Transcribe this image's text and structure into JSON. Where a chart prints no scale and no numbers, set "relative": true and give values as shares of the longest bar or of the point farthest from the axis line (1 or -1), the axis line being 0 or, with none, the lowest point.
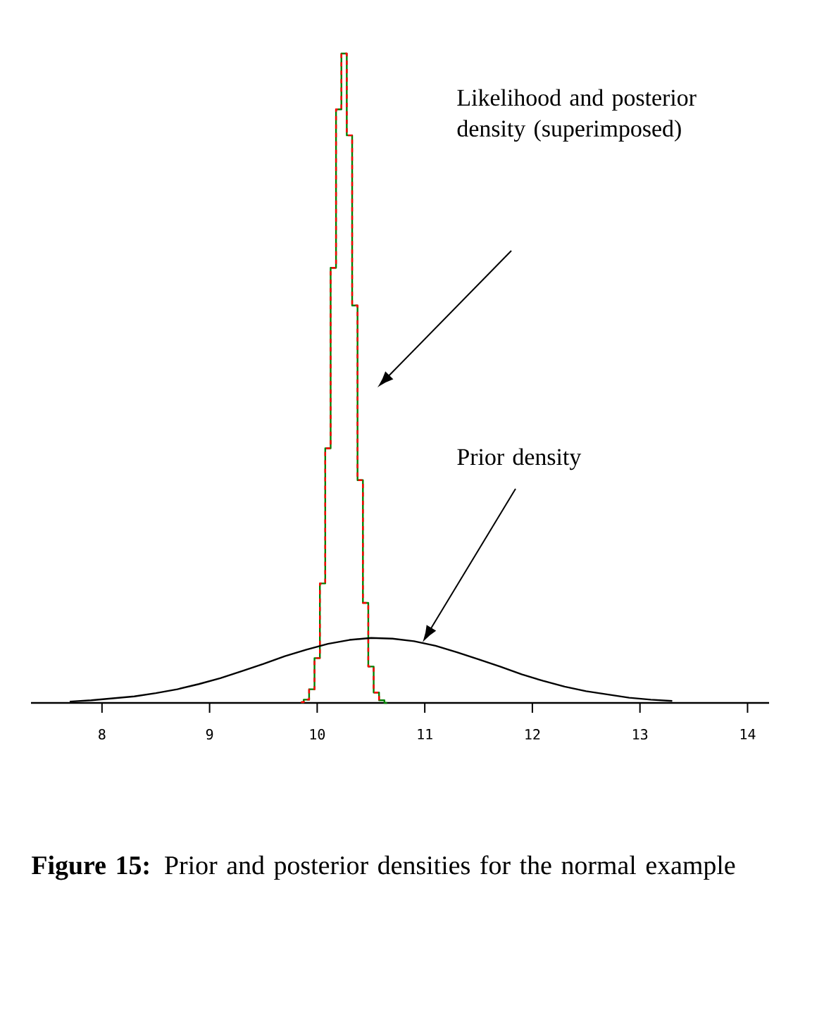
{
  "chart_data": {
    "type": "line",
    "relative": true,
    "xlim": [
      7.34,
      14.2
    ],
    "xticks": [
      8,
      9,
      10,
      11,
      12,
      13,
      14
    ],
    "series": [
      {
        "type": "step",
        "color": "#008000",
        "x": [
          9.85,
          9.9,
          9.95,
          10.0,
          10.05,
          10.1,
          10.15,
          10.2,
          10.25,
          10.3,
          10.35,
          10.4,
          10.45,
          10.5,
          10.55,
          10.6,
          10.65
        ],
        "values": [
          0.001,
          0.005,
          0.021,
          0.069,
          0.184,
          0.392,
          0.67,
          0.914,
          1.0,
          0.874,
          0.612,
          0.343,
          0.154,
          0.056,
          0.016,
          0.004,
          0.0
        ]
      },
      {
        "type": "step",
        "color": "#ff0000",
        "line_style": "dashed",
        "x": [
          9.85,
          9.9,
          9.95,
          10.0,
          10.05,
          10.1,
          10.15,
          10.2,
          10.25,
          10.3,
          10.35,
          10.4,
          10.45,
          10.5,
          10.55,
          10.6
        ],
        "values": [
          0.001,
          0.005,
          0.021,
          0.069,
          0.184,
          0.392,
          0.67,
          0.914,
          1.0,
          0.874,
          0.612,
          0.343,
          0.154,
          0.056,
          0.016,
          0.004
        ]
      },
      {
        "color": "#000000",
        "x": [
          7.7,
          7.9,
          8.1,
          8.3,
          8.5,
          8.7,
          8.9,
          9.1,
          9.3,
          9.5,
          9.7,
          9.9,
          10.1,
          10.3,
          10.5,
          10.7,
          10.9,
          11.1,
          11.3,
          11.5,
          11.7,
          11.9,
          12.1,
          12.3,
          12.5,
          12.7,
          12.9,
          13.1,
          13.3
        ],
        "values": [
          0.002,
          0.004,
          0.007,
          0.01,
          0.015,
          0.021,
          0.029,
          0.038,
          0.049,
          0.06,
          0.072,
          0.082,
          0.091,
          0.097,
          0.1,
          0.099,
          0.095,
          0.088,
          0.078,
          0.067,
          0.056,
          0.044,
          0.034,
          0.025,
          0.018,
          0.013,
          0.008,
          0.005,
          0.003
        ]
      }
    ],
    "annotations": [
      "Likelihood and posterior density (superimposed)",
      "Prior density",
      "**Figure 15:** Prior and posterior densities for the normal example"
    ]
  }
}
